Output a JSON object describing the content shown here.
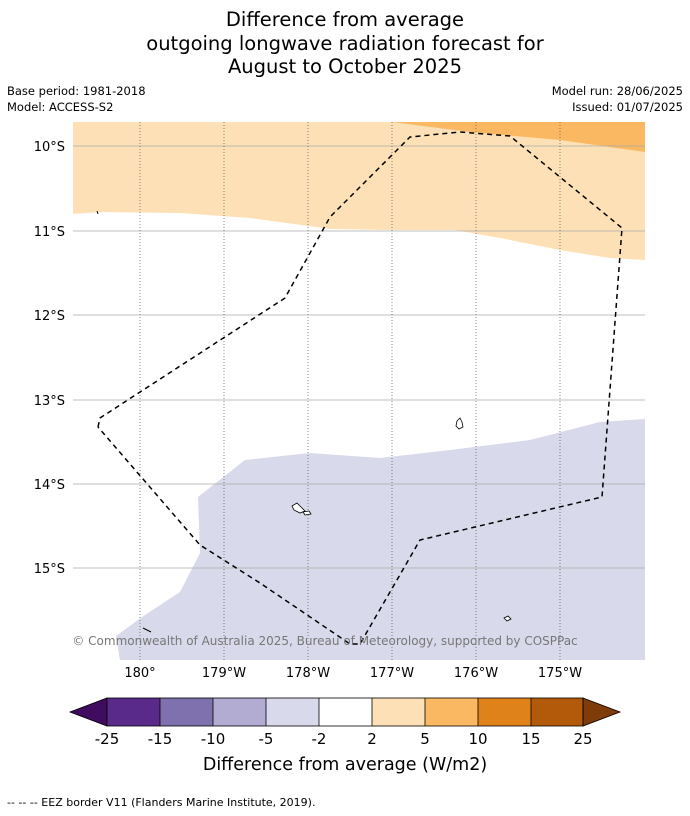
{
  "title": {
    "line1": "Difference from average",
    "line2": "outgoing longwave radiation forecast for",
    "line3": "August to October 2025"
  },
  "meta": {
    "base_period": "Base period: 1981-2018",
    "model": "Model: ACCESS-S2",
    "model_run": "Model run: 28/06/2025",
    "issued": "Issued: 01/07/2025"
  },
  "map": {
    "lat_labels": [
      "10°S",
      "11°S",
      "12°S",
      "13°S",
      "14°S",
      "15°S"
    ],
    "lon_labels": [
      "180°",
      "179°W",
      "178°W",
      "177°W",
      "176°W",
      "175°W"
    ],
    "copyright": "© Commonwealth of Australia 2025, Bureau of Meteorology, supported by COSPPac",
    "colors": {
      "anomaly_2_5": "#fde0b5",
      "anomaly_5_10": "#fbb862",
      "anomaly_neg5_neg2": "#d8d9ea",
      "eez_border": "#000000",
      "gridline": "#aaaaaa"
    }
  },
  "colorbar": {
    "ticks": [
      "-25",
      "-15",
      "-10",
      "-5",
      "-2",
      "2",
      "5",
      "10",
      "15",
      "25"
    ],
    "colors": [
      "#3f0c60",
      "#5a2a8a",
      "#7f70ae",
      "#b2abd2",
      "#d8d9ea",
      "#ffffff",
      "#fde0b5",
      "#fbb862",
      "#e0821a",
      "#b3590a",
      "#7f3b08"
    ],
    "label": "Difference from average (W/m2)"
  },
  "footer": {
    "legend": "--  --  -- EEZ border V11 (Flanders Marine Institute, 2019)."
  }
}
